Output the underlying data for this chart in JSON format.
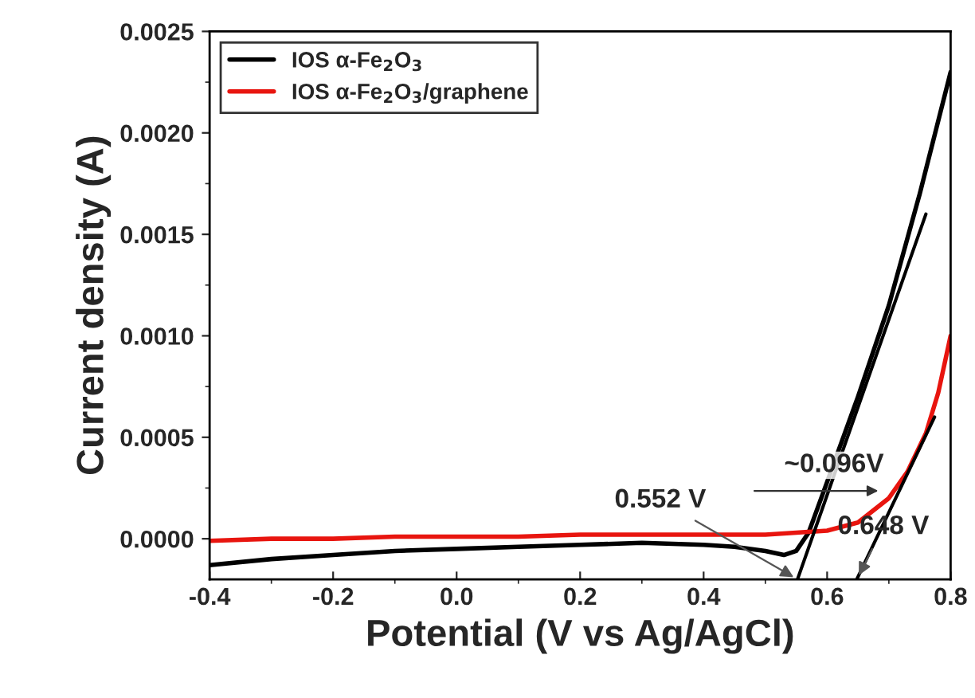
{
  "chart_data": {
    "type": "line",
    "xlabel": "Potential (V vs Ag/AgCl)",
    "ylabel": "Current density (A)",
    "xlim": [
      -0.4,
      0.8
    ],
    "xticks": [
      -0.4,
      -0.2,
      {
        "value": 0.0,
        "label": "0.0"
      },
      0.2,
      0.4,
      0.6,
      0.8
    ],
    "ylim": [
      -0.0002,
      0.0025
    ],
    "yticks": [
      {
        "value": 0.0,
        "label": "0.0000"
      },
      {
        "value": 0.0005,
        "label": "0.0005"
      },
      {
        "value": 0.001,
        "label": "0.0010"
      },
      {
        "value": 0.0015,
        "label": "0.0015"
      },
      {
        "value": 0.002,
        "label": "0.0020"
      },
      {
        "value": 0.0025,
        "label": "0.0025"
      }
    ],
    "grid": false,
    "legend": "top left",
    "marker": "none",
    "line_style": "solid",
    "series": [
      {
        "name": "IOS α-Fe$_{2}$O$_{3}$",
        "color": "#000000",
        "x": [
          -0.4,
          -0.3,
          -0.2,
          -0.1,
          0.0,
          0.1,
          0.2,
          0.3,
          0.4,
          0.45,
          0.5,
          0.53,
          0.55,
          0.57,
          0.6,
          0.65,
          0.7,
          0.75,
          0.8
        ],
        "values": [
          -0.00013,
          -0.0001,
          -8e-05,
          -6e-05,
          -5e-05,
          -4e-05,
          -3e-05,
          -2e-05,
          -3e-05,
          -4e-05,
          -6e-05,
          -8e-05,
          -6e-05,
          3e-05,
          0.00028,
          0.0007,
          0.00115,
          0.0017,
          0.0023
        ]
      },
      {
        "name": "IOS α-Fe$_{2}$O$_{3}$/graphene",
        "color": "#e8150f",
        "x": [
          -0.4,
          -0.3,
          -0.2,
          -0.1,
          0.0,
          0.1,
          0.2,
          0.3,
          0.4,
          0.5,
          0.55,
          0.6,
          0.65,
          0.7,
          0.73,
          0.76,
          0.78,
          0.8
        ],
        "values": [
          -1e-05,
          0.0,
          0.0,
          1e-05,
          1e-05,
          1e-05,
          2e-05,
          2e-05,
          2e-05,
          2e-05,
          3e-05,
          4e-05,
          8e-05,
          0.0002,
          0.00033,
          0.00052,
          0.00072,
          0.001
        ]
      },
      {
        "type": "line",
        "color": "#000000",
        "x": [
          0.552,
          0.76
        ],
        "values": [
          -0.0002,
          0.0016
        ]
      },
      {
        "type": "line",
        "color": "#000000",
        "x": [
          0.648,
          0.774
        ],
        "values": [
          -0.0002,
          0.0006
        ]
      }
    ],
    "annotations": [
      {
        "text": "0.552 V",
        "x": 0.552,
        "y": -0.0002
      },
      {
        "text": "~0.096V",
        "x": 0.69,
        "y": 0.000236
      },
      {
        "text": "0.648 V",
        "x": 0.648,
        "y": -0.0002
      }
    ]
  }
}
